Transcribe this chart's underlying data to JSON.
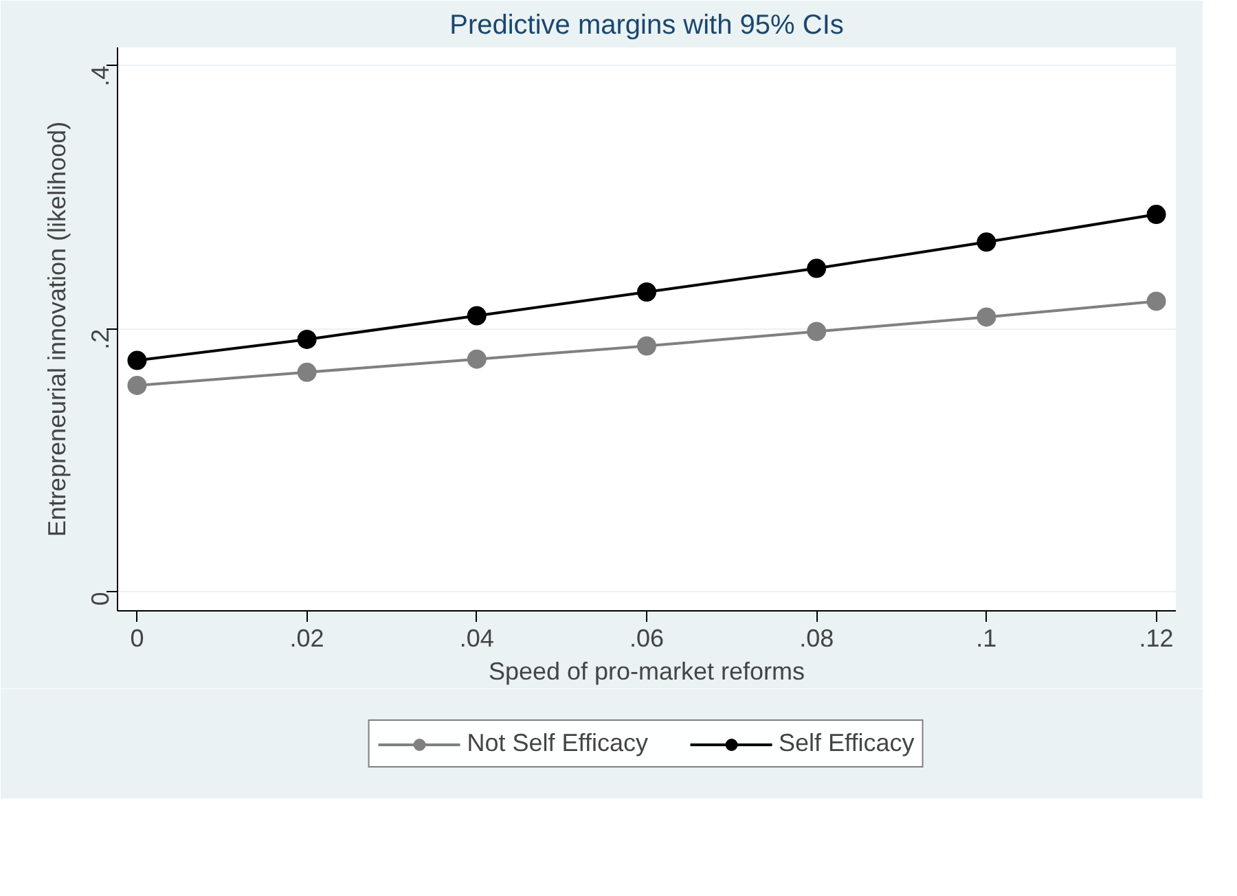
{
  "chart_data": {
    "type": "line",
    "title": "Predictive margins with 95% CIs",
    "xlabel": "Speed of pro-market reforms",
    "ylabel": "Entrepreneurial innovation (likelihood)",
    "x": [
      0,
      0.02,
      0.04,
      0.06,
      0.08,
      0.1,
      0.12
    ],
    "series": [
      {
        "name": "Not Self Efficacy",
        "color": "#808080",
        "values": [
          0.157,
          0.167,
          0.177,
          0.187,
          0.198,
          0.209,
          0.221
        ]
      },
      {
        "name": "Self Efficacy",
        "color": "#000000",
        "values": [
          0.176,
          0.192,
          0.21,
          0.228,
          0.246,
          0.266,
          0.287
        ]
      }
    ],
    "xlim": [
      -0.0023,
      0.1223
    ],
    "ylim": [
      -0.0144,
      0.414
    ],
    "xticks": [
      0,
      {
        "value": 0.02,
        "label": ".02"
      },
      {
        "value": 0.04,
        "label": ".04"
      },
      {
        "value": 0.06,
        "label": ".06"
      },
      {
        "value": 0.08,
        "label": ".08"
      },
      {
        "value": 0.1,
        "label": ".1"
      },
      {
        "value": 0.12,
        "label": ".12"
      }
    ],
    "yticks": [
      0,
      {
        "value": 0.2,
        "label": ".2"
      },
      {
        "value": 0.4,
        "label": ".4"
      }
    ],
    "grid": "y",
    "legend": "bottom",
    "marker": "circle",
    "line_style": "solid"
  }
}
